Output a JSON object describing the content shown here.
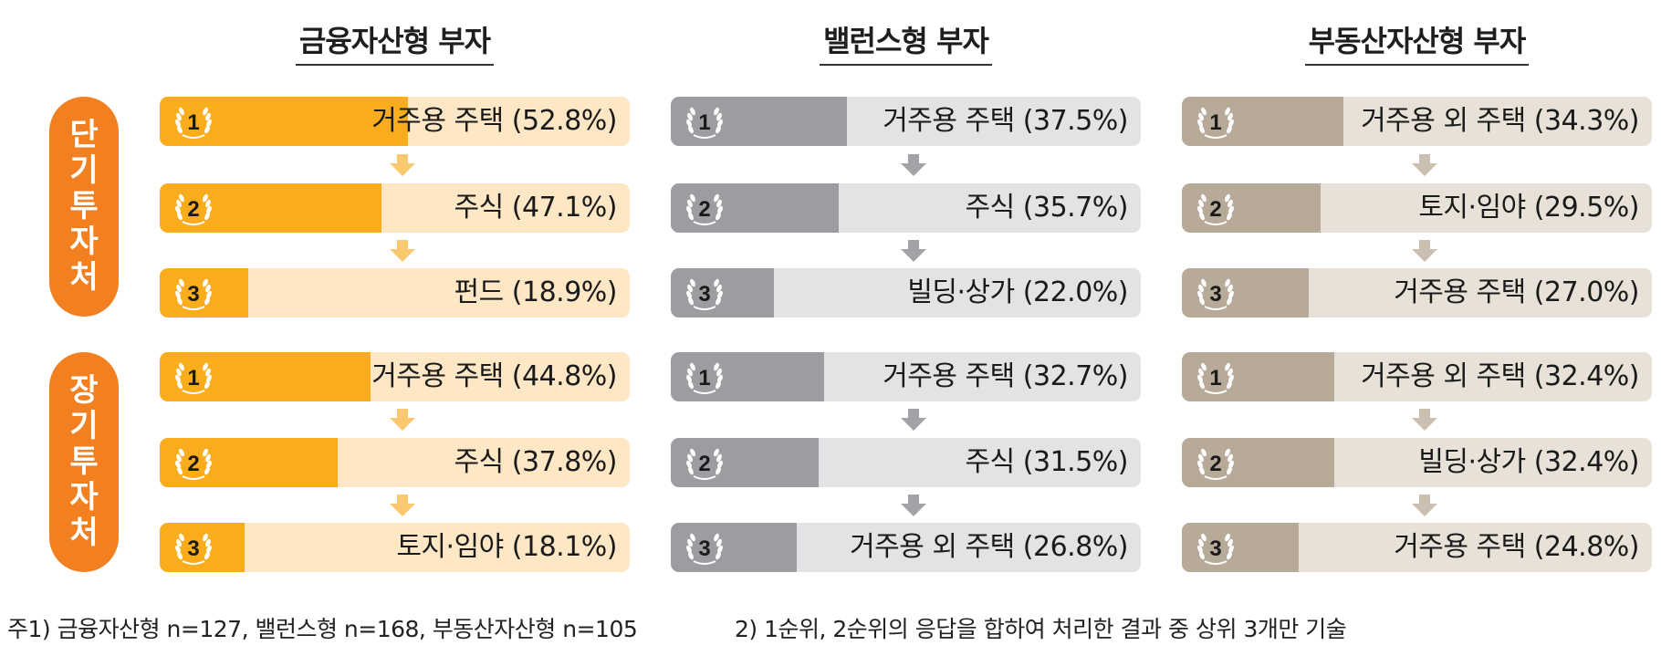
{
  "chart_data": {
    "type": "bar",
    "groups": [
      "금융자산형 부자",
      "밸런스형 부자",
      "부동산자산형 부자"
    ],
    "periods": [
      "단기투자처",
      "장기투자처"
    ],
    "ranks": [
      "1",
      "2",
      "3"
    ],
    "colors": [
      {
        "fill": "#f9ac1c",
        "track": "#fde7c5",
        "arrow": "#fac86e"
      },
      {
        "fill": "#9d9da1",
        "track": "#e2e3e5",
        "arrow": "#a3a3a7"
      },
      {
        "fill": "#b8aa99",
        "track": "#e8e1d7",
        "arrow": "#cbbfb2"
      }
    ],
    "data": [
      [
        [
          {
            "label": "거주용 주택 (52.8%)",
            "value": 52.8
          },
          {
            "label": "주식 (47.1%)",
            "value": 47.1
          },
          {
            "label": "펀드 (18.9%)",
            "value": 18.9
          }
        ],
        [
          {
            "label": "거주용 주택 (44.8%)",
            "value": 44.8
          },
          {
            "label": "주식 (37.8%)",
            "value": 37.8
          },
          {
            "label": "토지·임야 (18.1%)",
            "value": 18.1
          }
        ]
      ],
      [
        [
          {
            "label": "거주용 주택 (37.5%)",
            "value": 37.5
          },
          {
            "label": "주식 (35.7%)",
            "value": 35.7
          },
          {
            "label": "빌딩·상가 (22.0%)",
            "value": 22.0
          }
        ],
        [
          {
            "label": "거주용 주택 (32.7%)",
            "value": 32.7
          },
          {
            "label": "주식 (31.5%)",
            "value": 31.5
          },
          {
            "label": "거주용 외 주택 (26.8%)",
            "value": 26.8
          }
        ]
      ],
      [
        [
          {
            "label": "거주용 외 주택 (34.3%)",
            "value": 34.3
          },
          {
            "label": "토지·임야 (29.5%)",
            "value": 29.5
          },
          {
            "label": "거주용 주택 (27.0%)",
            "value": 27.0
          }
        ],
        [
          {
            "label": "거주용 외 주택 (32.4%)",
            "value": 32.4
          },
          {
            "label": "빌딩·상가 (32.4%)",
            "value": 32.4
          },
          {
            "label": "거주용 주택 (24.8%)",
            "value": 24.8
          }
        ]
      ]
    ]
  },
  "footnotes": {
    "note1": "주1) 금융자산형 n=127, 밸런스형 n=168,  부동산자산형 n=105",
    "note2": "2) 1순위, 2순위의 응답을 합하여 처리한 결과 중 상위 3개만 기술"
  }
}
